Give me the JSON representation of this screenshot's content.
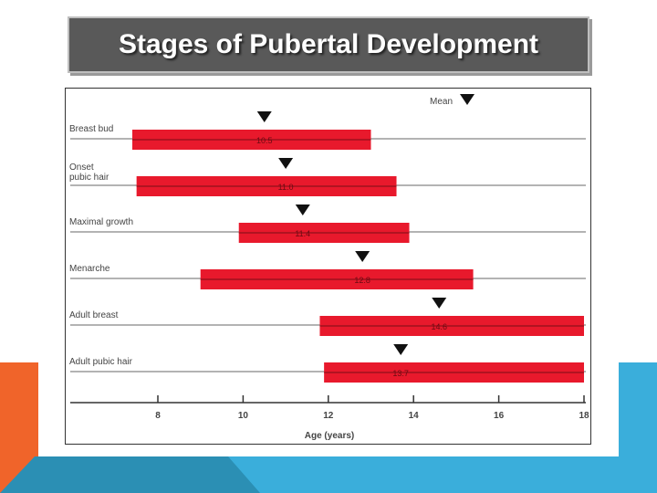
{
  "slide": {
    "title": "Stages of Pubertal Development"
  },
  "colors": {
    "bar": "#e8192c",
    "bar_line": "#7a0d16",
    "grid_line": "#9a9a9a",
    "axis": "#333333",
    "title_bg": "#595959"
  },
  "chart_data": {
    "type": "bar",
    "orientation": "horizontal-range",
    "xlabel": "Age (years)",
    "xlim": [
      6,
      18
    ],
    "x_ticks": [
      8,
      10,
      12,
      14,
      16,
      18
    ],
    "mean_label": "Mean",
    "categories": [
      {
        "label": [
          "Breast bud"
        ],
        "start": 7.4,
        "end": 13.0,
        "mean": 10.5,
        "mean_text": "10.5"
      },
      {
        "label": [
          "Onset",
          "pubic hair"
        ],
        "start": 7.5,
        "end": 13.6,
        "mean": 11.0,
        "mean_text": "11.0"
      },
      {
        "label": [
          "Maximal growth"
        ],
        "start": 9.9,
        "end": 13.9,
        "mean": 11.4,
        "mean_text": "11.4"
      },
      {
        "label": [
          "Menarche"
        ],
        "start": 9.0,
        "end": 15.4,
        "mean": 12.8,
        "mean_text": "12.8"
      },
      {
        "label": [
          "Adult breast"
        ],
        "start": 11.8,
        "end": 18.0,
        "mean": 14.6,
        "mean_text": "14.6"
      },
      {
        "label": [
          "Adult pubic hair"
        ],
        "start": 11.9,
        "end": 18.0,
        "mean": 13.7,
        "mean_text": "13.7"
      }
    ]
  }
}
